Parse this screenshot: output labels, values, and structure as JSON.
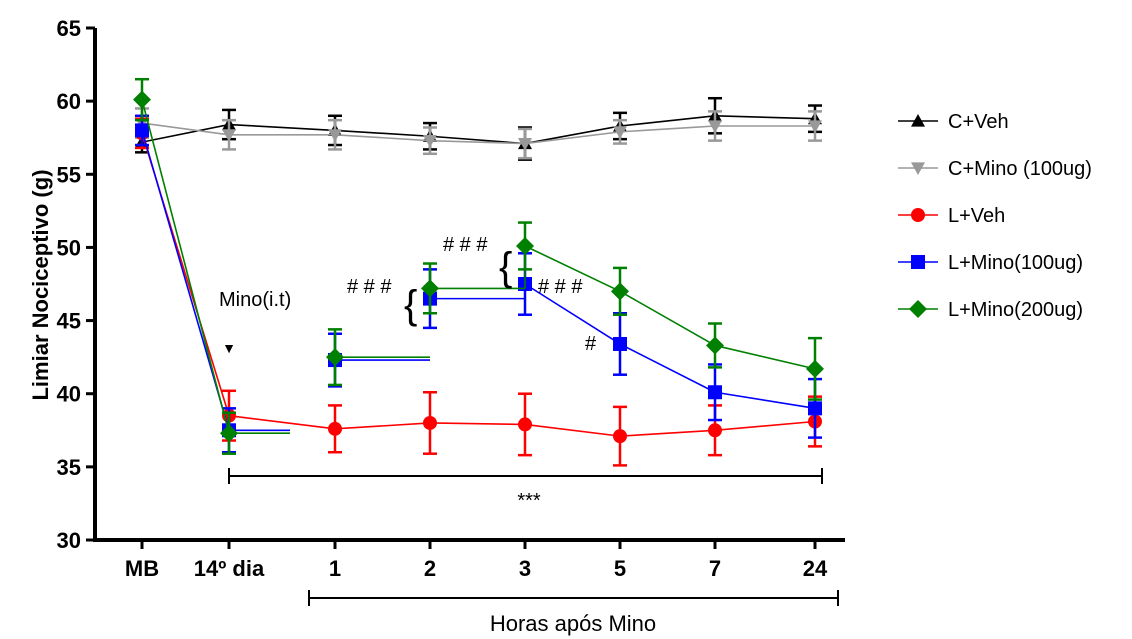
{
  "chart_data": {
    "type": "line",
    "ylabel": "Limiar Nociceptivo (g)",
    "xlabel": "Horas após Mino",
    "ylim": [
      30,
      65
    ],
    "yticks": [
      30,
      35,
      40,
      45,
      50,
      55,
      60,
      65
    ],
    "categories": [
      "MB",
      "14º dia",
      "1",
      "2",
      "3",
      "5",
      "7",
      "24"
    ],
    "series": [
      {
        "name": "C+Veh",
        "color": "#000000",
        "marker": "triangle-up",
        "values": [
          57.2,
          58.4,
          58.0,
          57.6,
          57.1,
          58.3,
          59.0,
          58.8
        ],
        "errors": [
          0.7,
          1.0,
          1.0,
          0.9,
          1.1,
          0.9,
          1.2,
          0.9
        ]
      },
      {
        "name": "C+Mino (100ug)",
        "color": "#999999",
        "marker": "triangle-down",
        "values": [
          58.5,
          57.7,
          57.7,
          57.3,
          57.1,
          57.9,
          58.3,
          58.3
        ],
        "errors": [
          1.0,
          1.0,
          1.0,
          0.9,
          1.0,
          0.8,
          1.0,
          1.0
        ]
      },
      {
        "name": "L+Veh",
        "color": "#ff0000",
        "marker": "circle",
        "values": [
          57.8,
          38.5,
          37.6,
          38.0,
          37.9,
          37.1,
          37.5,
          38.1
        ],
        "errors": [
          1.0,
          1.7,
          1.6,
          2.1,
          2.1,
          2.0,
          1.7,
          1.7
        ]
      },
      {
        "name": "L+Mino(100ug)",
        "color": "#0000ff",
        "marker": "square",
        "values": [
          58.0,
          37.5,
          42.3,
          46.5,
          47.5,
          43.4,
          40.1,
          39.0
        ],
        "errors": [
          1.0,
          1.5,
          1.8,
          2.0,
          2.1,
          2.1,
          1.9,
          2.0
        ]
      },
      {
        "name": "L+Mino(200ug)",
        "color": "#008000",
        "marker": "diamond",
        "values": [
          60.1,
          37.3,
          42.5,
          47.2,
          50.1,
          47.0,
          43.3,
          41.7
        ],
        "errors": [
          1.4,
          1.4,
          1.9,
          1.7,
          1.6,
          1.6,
          1.5,
          2.1
        ]
      }
    ],
    "broken_after_index": 1,
    "annotations": {
      "mino_it": "Mino(i.t)",
      "arrow": "▼",
      "hash3": "# # #",
      "hash1": "#",
      "stars": "***",
      "brace": "{"
    },
    "legend_position": "right",
    "grid": false
  }
}
